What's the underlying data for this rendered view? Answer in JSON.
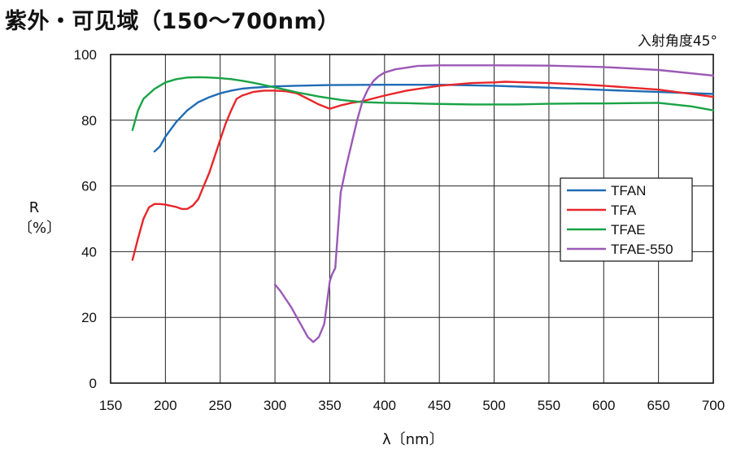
{
  "chart_data": {
    "type": "line",
    "title": "紫外・可见域（150～700nm）",
    "subtitle": "入射角度45°",
    "xlabel": "λ〔nm〕",
    "ylabel_main": "R",
    "ylabel_unit": "〔%〕",
    "xlim": [
      150,
      700
    ],
    "ylim": [
      0,
      100
    ],
    "xticks": [
      150,
      200,
      250,
      300,
      350,
      400,
      450,
      500,
      550,
      600,
      650,
      700
    ],
    "yticks": [
      0,
      20,
      40,
      60,
      80,
      100
    ],
    "grid": true,
    "legend_position": "right",
    "series": [
      {
        "name": "TFAN",
        "color": "#1f6cb5",
        "x": [
          190,
          195,
          200,
          210,
          220,
          230,
          240,
          250,
          260,
          270,
          280,
          290,
          300,
          320,
          350,
          400,
          450,
          500,
          550,
          600,
          650,
          700
        ],
        "y": [
          70.5,
          72,
          75,
          79.5,
          83,
          85.5,
          87,
          88.2,
          89,
          89.6,
          89.9,
          90.1,
          90.3,
          90.5,
          90.7,
          90.8,
          90.8,
          90.5,
          89.9,
          89.2,
          88.6,
          88
        ]
      },
      {
        "name": "TFA",
        "color": "#e8262a",
        "x": [
          170,
          175,
          180,
          185,
          190,
          195,
          200,
          210,
          215,
          220,
          225,
          230,
          235,
          240,
          245,
          250,
          255,
          260,
          265,
          270,
          280,
          290,
          300,
          310,
          320,
          330,
          340,
          350,
          360,
          370,
          380,
          400,
          420,
          450,
          480,
          500,
          510,
          550,
          580,
          600,
          650,
          700
        ],
        "y": [
          37.5,
          44,
          50,
          53.5,
          54.5,
          54.5,
          54.3,
          53.6,
          53,
          53,
          54,
          56,
          60,
          64,
          69,
          74,
          79,
          83,
          86.5,
          87.5,
          88.6,
          89,
          89,
          88.8,
          88.2,
          86.5,
          84.8,
          83.5,
          84.5,
          85.3,
          85.8,
          87.5,
          89,
          90.5,
          91.3,
          91.5,
          91.7,
          91.3,
          90.9,
          90.5,
          89.3,
          87.1
        ]
      },
      {
        "name": "TFAE",
        "color": "#19a345",
        "x": [
          170,
          175,
          180,
          190,
          200,
          210,
          220,
          230,
          240,
          250,
          260,
          270,
          280,
          300,
          320,
          340,
          360,
          380,
          400,
          420,
          440,
          460,
          480,
          500,
          520,
          550,
          580,
          600,
          650,
          680,
          700
        ],
        "y": [
          77,
          83,
          86.5,
          89.5,
          91.5,
          92.5,
          93,
          93.1,
          93,
          92.8,
          92.5,
          92,
          91.4,
          90,
          88.5,
          87.2,
          86.2,
          85.5,
          85.3,
          85.2,
          85,
          84.9,
          84.8,
          84.8,
          84.8,
          85,
          85.1,
          85.1,
          85.3,
          84.2,
          83
        ]
      },
      {
        "name": "TFAE-550",
        "color": "#9b59b6",
        "x": [
          300,
          305,
          310,
          315,
          320,
          325,
          330,
          335,
          340,
          345,
          350,
          352,
          355,
          360,
          365,
          370,
          375,
          380,
          385,
          390,
          395,
          400,
          410,
          420,
          430,
          450,
          500,
          550,
          600,
          650,
          700
        ],
        "y": [
          30,
          28,
          25.5,
          23,
          20,
          17,
          14,
          12.5,
          14,
          18,
          31,
          33,
          35,
          58,
          66,
          73,
          80,
          86,
          89.5,
          92,
          93.5,
          94.5,
          95.5,
          96,
          96.5,
          96.7,
          96.7,
          96.6,
          96.2,
          95.3,
          93.6
        ]
      }
    ]
  }
}
